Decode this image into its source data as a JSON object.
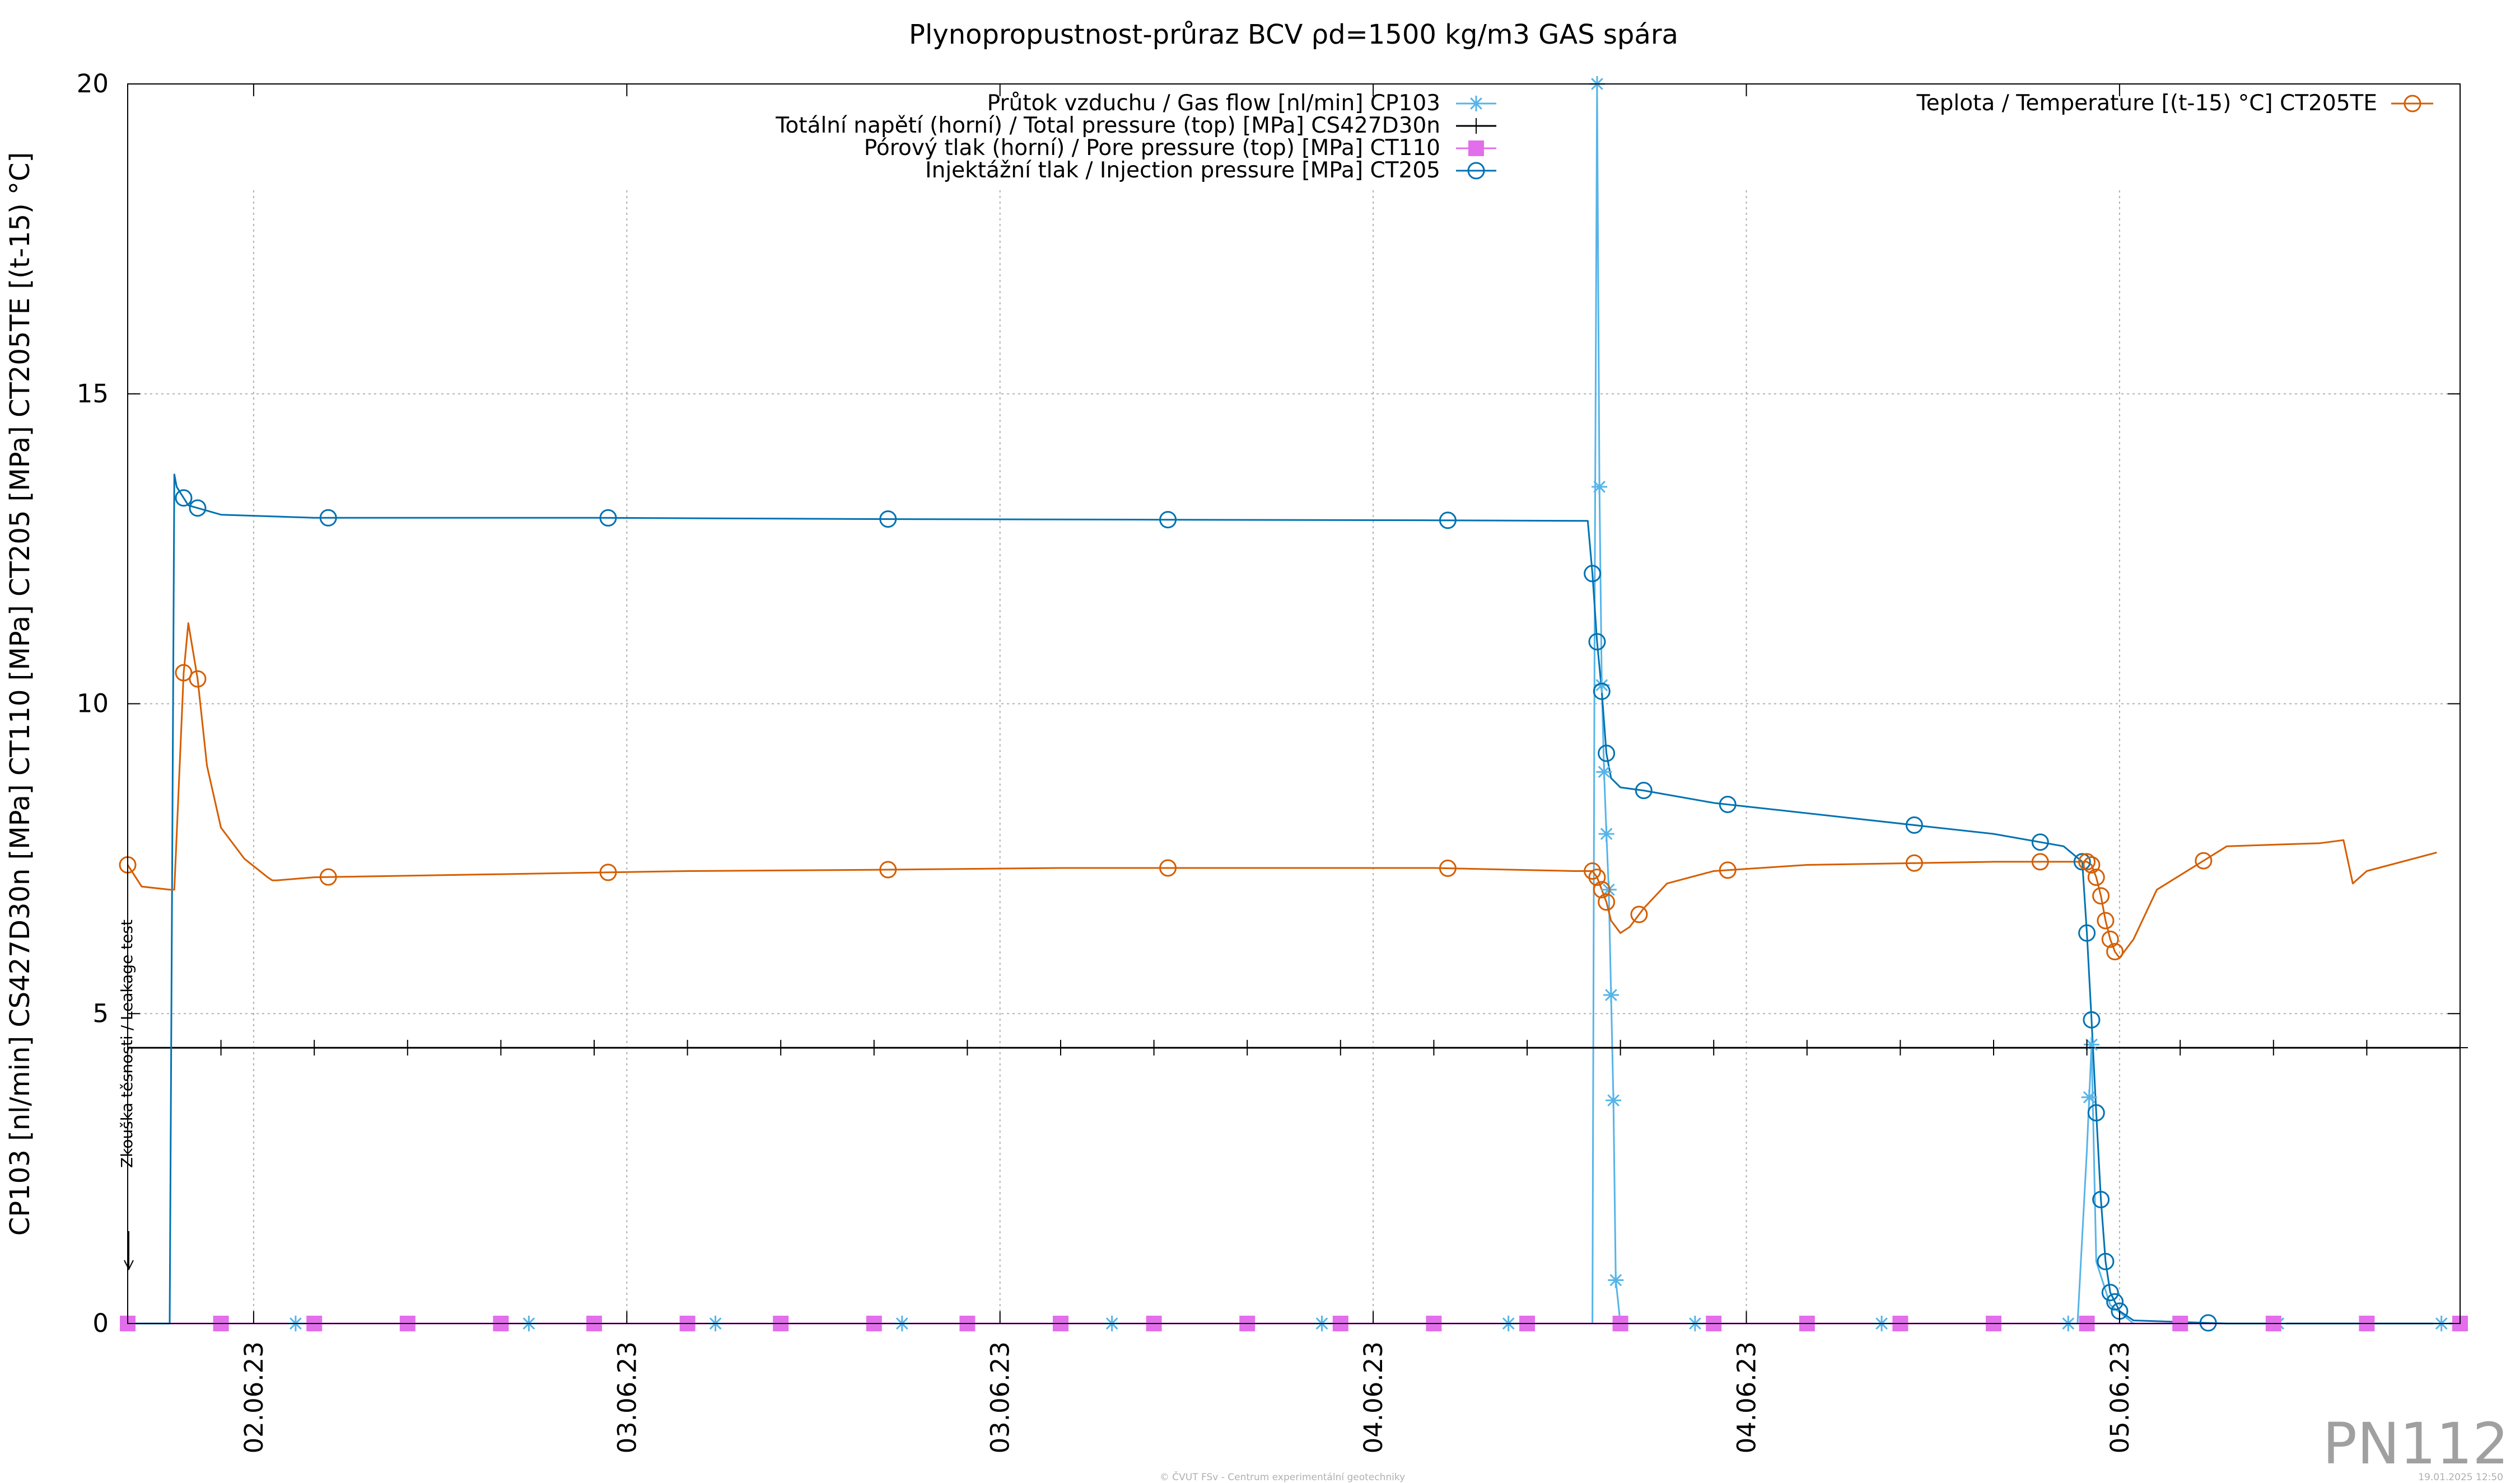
{
  "chart_data": {
    "type": "line",
    "title": "Plynopropustnost-průraz BCV ρd=1500 kg/m3 GAS spára",
    "ylabel": "CP103 [nl/min] CS427D30n [MPa] CT110 [MPa] CT205 [MPa] CT205TE [(t-15) °C]",
    "xlabel": "",
    "ylim": [
      0,
      20
    ],
    "yticks": [
      0,
      5,
      10,
      15,
      20
    ],
    "xtick_labels": [
      "02.06.23",
      "03.06.23",
      "03.06.23",
      "04.06.23",
      "04.06.23",
      "05.06.23"
    ],
    "x_unit": "days since plot start",
    "xlim": [
      0,
      5.0
    ],
    "xticks": [
      0.27,
      1.07,
      1.87,
      2.67,
      3.47,
      4.27
    ],
    "grid": true,
    "legend_left_position": "top-center",
    "legend_right_position": "top-right",
    "series": [
      {
        "name": "Průtok vzduchu / Gas flow [nl/min] CP103",
        "color": "#56b4e9",
        "marker": "asterisk",
        "x": [
          0.0,
          0.1,
          3.14,
          3.145,
          3.15,
          3.155,
          3.16,
          3.165,
          3.17,
          3.175,
          3.18,
          3.185,
          3.19,
          3.2,
          3.21,
          3.25,
          4.18,
          4.2,
          4.21,
          4.22,
          4.25,
          4.3,
          5.0
        ],
        "y": [
          0.0,
          0.0,
          0.0,
          12.0,
          21.0,
          13.5,
          10.3,
          8.9,
          7.9,
          7.0,
          5.3,
          3.6,
          0.7,
          0.0,
          0.0,
          0.0,
          0.0,
          2.8,
          4.5,
          1.0,
          0.3,
          0.0,
          0.0
        ],
        "marker_x": [
          0.36,
          0.86,
          1.26,
          1.66,
          2.11,
          2.56,
          2.96,
          3.15,
          3.155,
          3.16,
          3.165,
          3.17,
          3.175,
          3.18,
          3.185,
          3.19,
          3.36,
          3.76,
          4.16,
          4.205,
          4.21,
          4.61,
          4.96
        ]
      },
      {
        "name": "Totální napětí (horní) / Total pressure (top) [MPa] CS427D30n",
        "color": "#000000",
        "marker": "plus",
        "x": [
          0.0,
          5.0
        ],
        "y": [
          4.45,
          4.45
        ],
        "marker_x": [
          0.2,
          0.4,
          0.6,
          0.8,
          1.0,
          1.2,
          1.4,
          1.6,
          1.8,
          2.0,
          2.2,
          2.4,
          2.6,
          2.8,
          3.0,
          3.2,
          3.4,
          3.6,
          3.8,
          4.0,
          4.2,
          4.4,
          4.6,
          4.8,
          5.0
        ]
      },
      {
        "name": "Pórový tlak (horní) / Pore pressure (top) [MPa] CT110",
        "color": "#e36eeb",
        "marker": "square",
        "x": [
          0.0,
          5.0
        ],
        "y": [
          0.0,
          0.0
        ],
        "marker_x": [
          0.0,
          0.2,
          0.4,
          0.6,
          0.8,
          1.0,
          1.2,
          1.4,
          1.6,
          1.8,
          2.0,
          2.2,
          2.4,
          2.6,
          2.8,
          3.0,
          3.2,
          3.4,
          3.6,
          3.8,
          4.0,
          4.2,
          4.4,
          4.6,
          4.8,
          5.0
        ]
      },
      {
        "name": "Injektážní tlak / Injection pressure [MPa] CT205",
        "color": "#0072b2",
        "marker": "circle",
        "x": [
          0.0,
          0.09,
          0.1,
          0.105,
          0.13,
          0.2,
          0.4,
          1.0,
          1.6,
          2.2,
          2.8,
          3.13,
          3.14,
          3.15,
          3.16,
          3.17,
          3.18,
          3.2,
          3.25,
          3.4,
          3.7,
          4.0,
          4.15,
          4.19,
          4.2,
          4.21,
          4.22,
          4.23,
          4.24,
          4.25,
          4.27,
          4.3,
          4.5,
          5.0
        ],
        "y": [
          0.0,
          0.0,
          13.7,
          13.5,
          13.2,
          13.05,
          13.0,
          13.0,
          12.98,
          12.97,
          12.96,
          12.95,
          12.1,
          11.0,
          10.2,
          9.2,
          8.8,
          8.65,
          8.6,
          8.4,
          8.15,
          7.9,
          7.7,
          7.45,
          6.3,
          4.9,
          3.4,
          2.0,
          1.0,
          0.5,
          0.2,
          0.05,
          0.0,
          0.0
        ],
        "marker_x": [
          0.12,
          0.15,
          0.43,
          1.03,
          1.63,
          2.23,
          2.83,
          3.14,
          3.15,
          3.16,
          3.17,
          3.25,
          3.43,
          3.83,
          4.1,
          4.19,
          4.2,
          4.21,
          4.22,
          4.23,
          4.24,
          4.25,
          4.26,
          4.27,
          4.46
        ]
      },
      {
        "name": "Teplota / Temperature [(t-15) °C] CT205TE",
        "color": "#d55e00",
        "marker": "circle",
        "x": [
          0.0,
          0.03,
          0.09,
          0.1,
          0.12,
          0.13,
          0.15,
          0.17,
          0.2,
          0.25,
          0.3,
          0.31,
          0.32,
          0.4,
          0.8,
          1.2,
          1.6,
          2.0,
          2.4,
          2.8,
          3.1,
          3.14,
          3.15,
          3.16,
          3.17,
          3.18,
          3.2,
          3.22,
          3.25,
          3.3,
          3.4,
          3.6,
          4.0,
          4.2,
          4.21,
          4.22,
          4.23,
          4.24,
          4.25,
          4.26,
          4.27,
          4.3,
          4.35,
          4.5,
          4.7,
          4.75,
          4.77,
          4.8,
          4.95
        ],
        "y": [
          7.4,
          7.05,
          7.0,
          7.0,
          10.5,
          11.3,
          10.4,
          9.0,
          8.0,
          7.5,
          7.2,
          7.15,
          7.15,
          7.2,
          7.25,
          7.3,
          7.32,
          7.35,
          7.35,
          7.35,
          7.3,
          7.3,
          7.2,
          7.0,
          6.8,
          6.5,
          6.3,
          6.4,
          6.7,
          7.1,
          7.3,
          7.4,
          7.45,
          7.45,
          7.4,
          7.2,
          6.9,
          6.5,
          6.2,
          6.0,
          5.9,
          6.2,
          7.0,
          7.7,
          7.75,
          7.8,
          7.1,
          7.3,
          7.6
        ],
        "marker_x": [
          0.0,
          0.12,
          0.15,
          0.43,
          1.03,
          1.63,
          2.23,
          2.83,
          3.14,
          3.15,
          3.16,
          3.17,
          3.24,
          3.43,
          3.83,
          4.1,
          4.2,
          4.21,
          4.22,
          4.23,
          4.24,
          4.25,
          4.26,
          4.45
        ]
      }
    ],
    "annotation": "Zkouška těsnosti / Leakage test"
  },
  "watermark": "PN112",
  "footer_center": "© ČVUT FSv - Centrum experimentální geotechniky",
  "footer_right": "19.01.2025 12:50"
}
